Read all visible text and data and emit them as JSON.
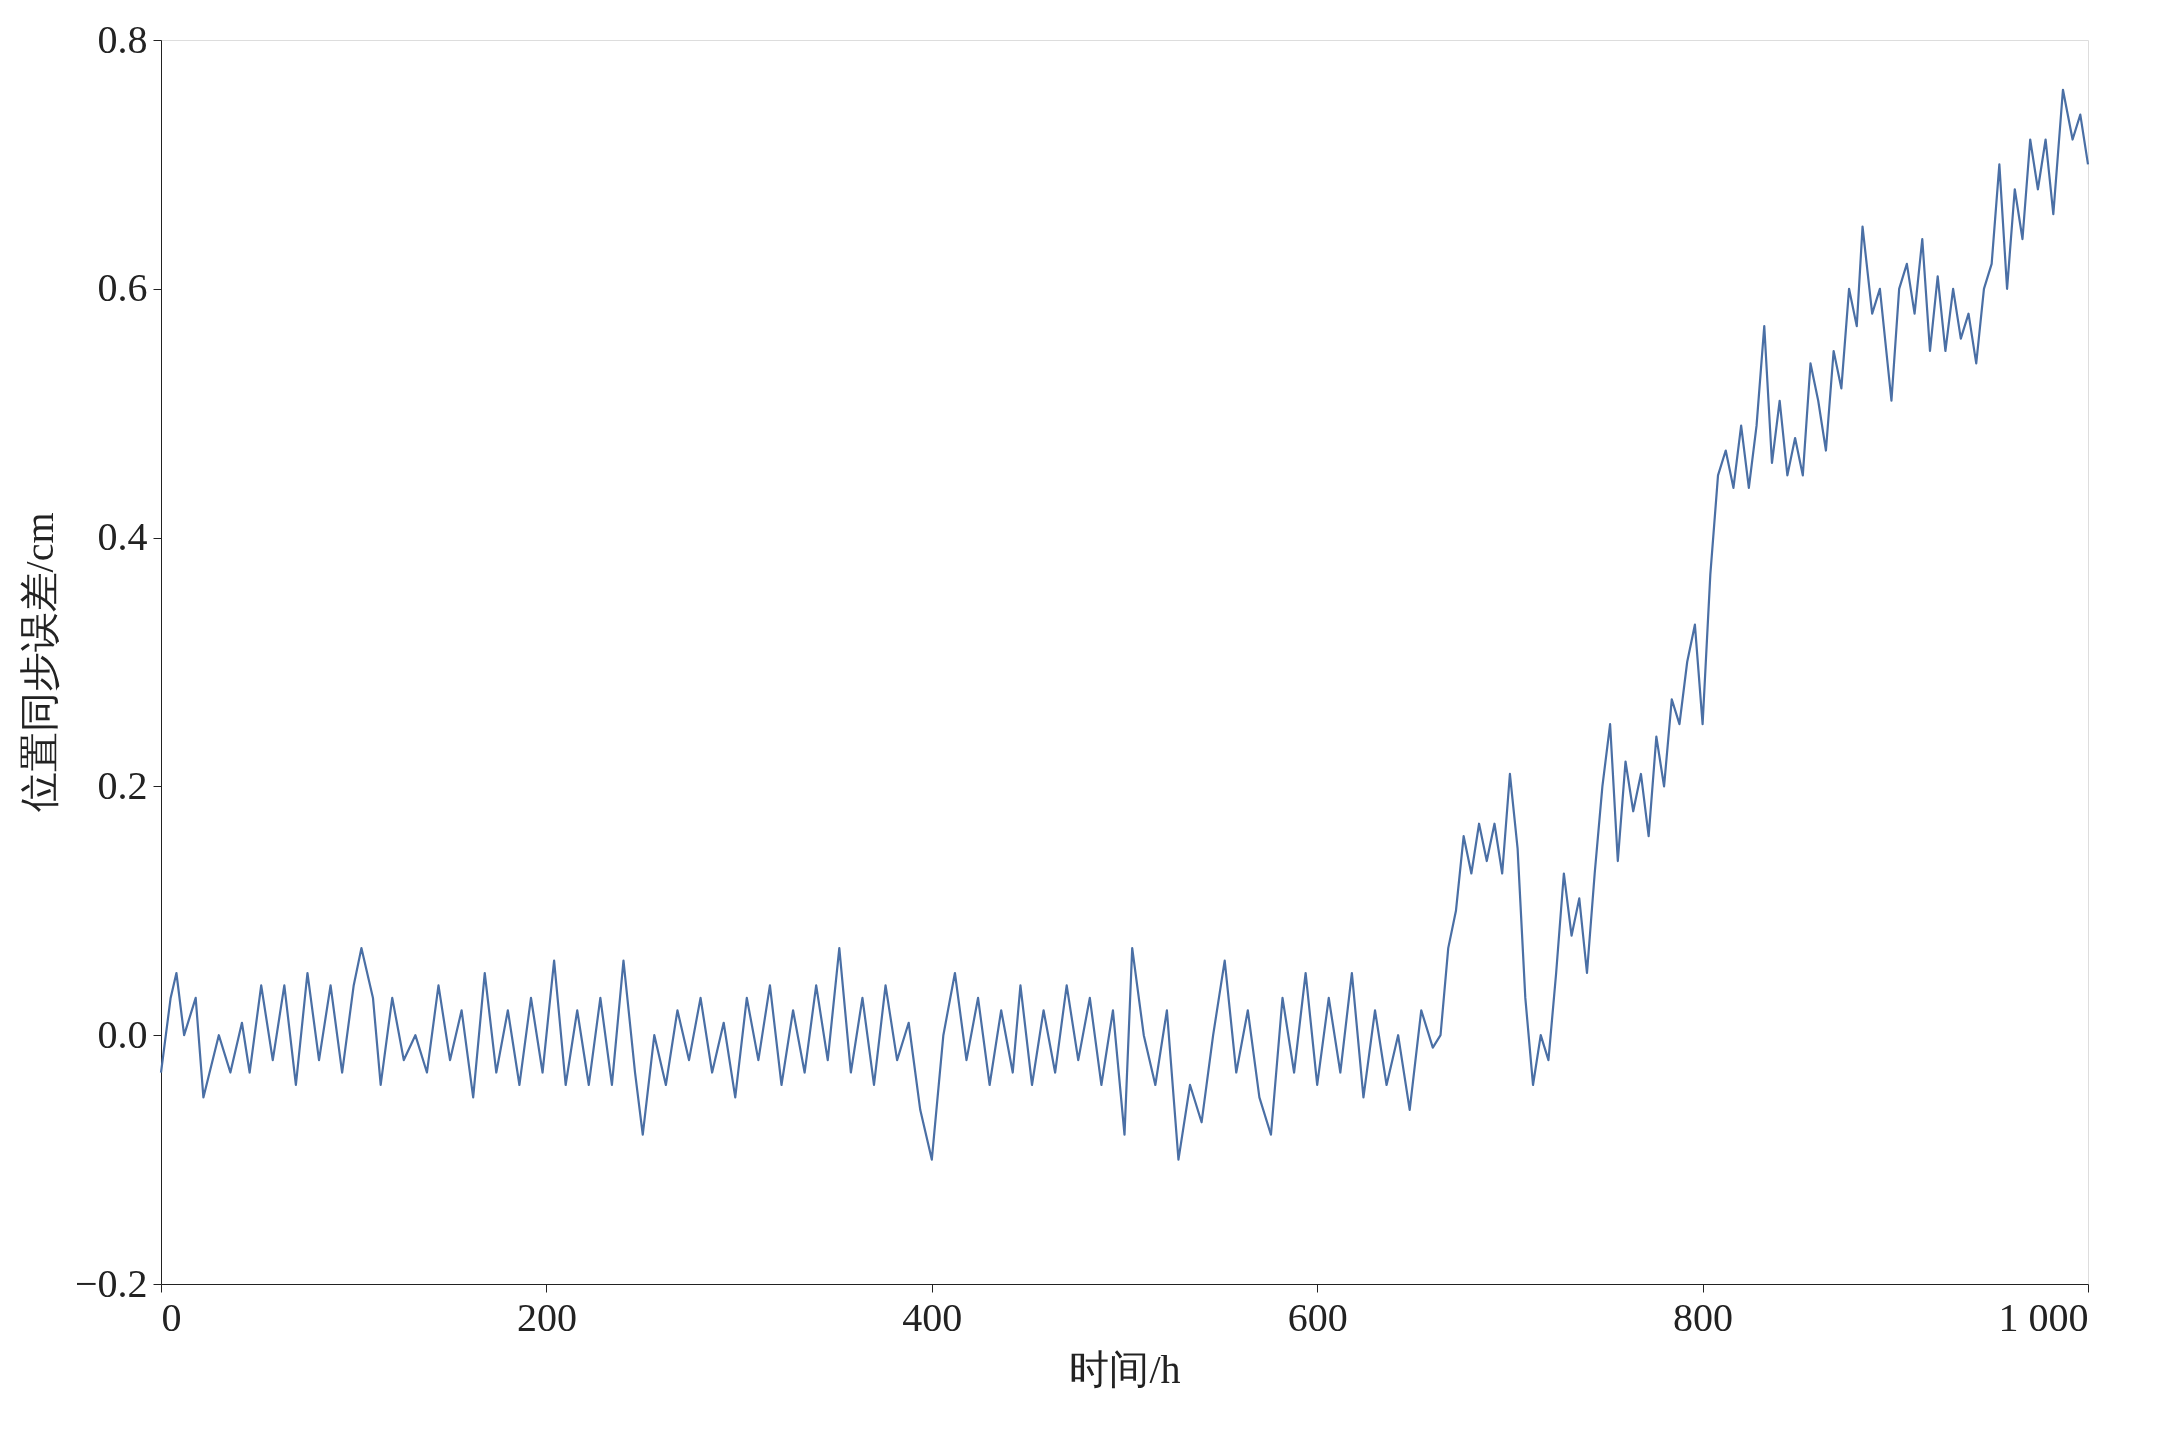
{
  "chart_data": {
    "type": "line",
    "xlabel": "时间/h",
    "ylabel": "位置同步误差/cm",
    "xlim": [
      0,
      1000
    ],
    "ylim": [
      -0.2,
      0.8
    ],
    "xticks": [
      0,
      200,
      400,
      600,
      800,
      {
        "value": 1000,
        "label": "1 000"
      }
    ],
    "yticks": [
      {
        "value": -0.2,
        "label": "−0.2"
      },
      {
        "value": 0,
        "label": "0.0"
      },
      0.2,
      0.4,
      0.6,
      0.8
    ],
    "grid": false,
    "marker": "none",
    "line_style": "solid",
    "series": [
      {
        "color": "#4a6fa5",
        "x": [
          0,
          5,
          8,
          12,
          18,
          22,
          30,
          36,
          42,
          46,
          52,
          58,
          64,
          70,
          76,
          82,
          88,
          94,
          100,
          104,
          110,
          114,
          120,
          126,
          132,
          138,
          144,
          150,
          156,
          162,
          168,
          174,
          180,
          186,
          192,
          198,
          204,
          210,
          216,
          222,
          228,
          234,
          240,
          246,
          250,
          256,
          262,
          268,
          274,
          280,
          286,
          292,
          298,
          304,
          310,
          316,
          322,
          328,
          334,
          340,
          346,
          352,
          358,
          364,
          370,
          376,
          382,
          388,
          394,
          400,
          406,
          412,
          418,
          424,
          430,
          436,
          442,
          446,
          452,
          458,
          464,
          470,
          476,
          482,
          488,
          494,
          500,
          504,
          510,
          516,
          522,
          528,
          534,
          540,
          546,
          552,
          558,
          564,
          570,
          576,
          582,
          588,
          594,
          600,
          606,
          612,
          618,
          624,
          630,
          636,
          642,
          648,
          654,
          660,
          664,
          668,
          672,
          676,
          680,
          684,
          688,
          692,
          696,
          700,
          704,
          708,
          712,
          716,
          720,
          724,
          728,
          732,
          736,
          740,
          744,
          748,
          752,
          756,
          760,
          764,
          768,
          772,
          776,
          780,
          784,
          788,
          792,
          796,
          800,
          804,
          808,
          812,
          816,
          820,
          824,
          828,
          832,
          836,
          840,
          844,
          848,
          852,
          856,
          860,
          864,
          868,
          872,
          876,
          880,
          883,
          888,
          892,
          898,
          902,
          906,
          910,
          914,
          918,
          922,
          926,
          930,
          934,
          938,
          942,
          946,
          950,
          954,
          958,
          962,
          966,
          970,
          974,
          978,
          982,
          987,
          992,
          996,
          1000
        ],
        "values": [
          -0.03,
          0.03,
          0.05,
          0.0,
          0.03,
          -0.05,
          0.0,
          -0.03,
          0.01,
          -0.03,
          0.04,
          -0.02,
          0.04,
          -0.04,
          0.05,
          -0.02,
          0.04,
          -0.03,
          0.04,
          0.07,
          0.03,
          -0.04,
          0.03,
          -0.02,
          0.0,
          -0.03,
          0.04,
          -0.02,
          0.02,
          -0.05,
          0.05,
          -0.03,
          0.02,
          -0.04,
          0.03,
          -0.03,
          0.06,
          -0.04,
          0.02,
          -0.04,
          0.03,
          -0.04,
          0.06,
          -0.03,
          -0.08,
          0.0,
          -0.04,
          0.02,
          -0.02,
          0.03,
          -0.03,
          0.01,
          -0.05,
          0.03,
          -0.02,
          0.04,
          -0.04,
          0.02,
          -0.03,
          0.04,
          -0.02,
          0.07,
          -0.03,
          0.03,
          -0.04,
          0.04,
          -0.02,
          0.01,
          -0.06,
          -0.1,
          0.0,
          0.05,
          -0.02,
          0.03,
          -0.04,
          0.02,
          -0.03,
          0.04,
          -0.04,
          0.02,
          -0.03,
          0.04,
          -0.02,
          0.03,
          -0.04,
          0.02,
          -0.08,
          0.07,
          0.0,
          -0.04,
          0.02,
          -0.1,
          -0.04,
          -0.07,
          0.0,
          0.06,
          -0.03,
          0.02,
          -0.05,
          -0.08,
          0.03,
          -0.03,
          0.05,
          -0.04,
          0.03,
          -0.03,
          0.05,
          -0.05,
          0.02,
          -0.04,
          0.0,
          -0.06,
          0.02,
          -0.01,
          0.0,
          0.07,
          0.1,
          0.16,
          0.13,
          0.17,
          0.14,
          0.17,
          0.13,
          0.21,
          0.15,
          0.03,
          -0.04,
          0.0,
          -0.02,
          0.05,
          0.13,
          0.08,
          0.11,
          0.05,
          0.13,
          0.2,
          0.25,
          0.14,
          0.22,
          0.18,
          0.21,
          0.16,
          0.24,
          0.2,
          0.27,
          0.25,
          0.3,
          0.33,
          0.25,
          0.37,
          0.45,
          0.47,
          0.44,
          0.49,
          0.44,
          0.49,
          0.57,
          0.46,
          0.51,
          0.45,
          0.48,
          0.45,
          0.54,
          0.51,
          0.47,
          0.55,
          0.52,
          0.6,
          0.57,
          0.65,
          0.58,
          0.6,
          0.51,
          0.6,
          0.62,
          0.58,
          0.64,
          0.55,
          0.61,
          0.55,
          0.6,
          0.56,
          0.58,
          0.54,
          0.6,
          0.62,
          0.7,
          0.6,
          0.68,
          0.64,
          0.72,
          0.68,
          0.72,
          0.66,
          0.76,
          0.72,
          0.74,
          0.7
        ]
      }
    ]
  }
}
